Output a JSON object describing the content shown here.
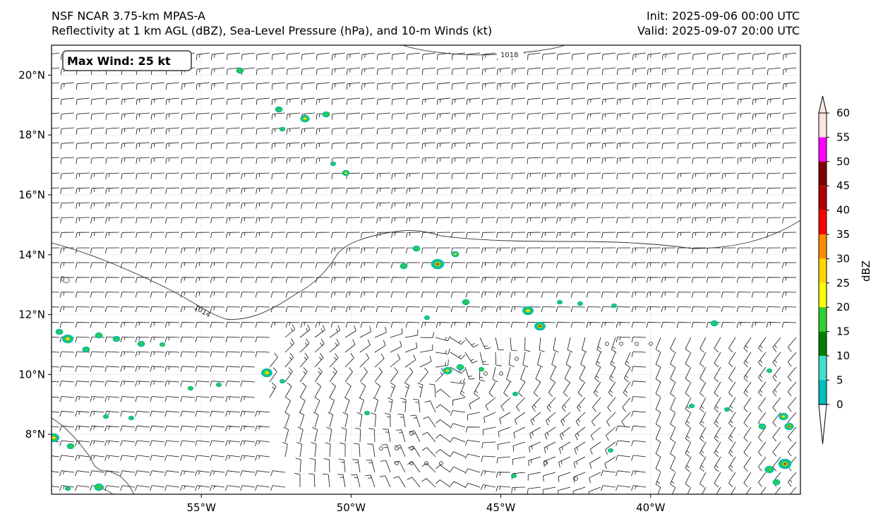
{
  "header": {
    "model": "NSF NCAR 3.75-km MPAS-A",
    "fields": "Reflectivity at 1 km AGL (dBZ), Sea-Level Pressure (hPa), and 10-m Winds (kt)",
    "init": "Init: 2025-09-06 00:00 UTC",
    "valid": "Valid: 2025-09-07 20:00 UTC"
  },
  "max_wind": "Max Wind: 25 kt",
  "axes": {
    "lat_labels": [
      {
        "value": 20,
        "label": "20°N"
      },
      {
        "value": 18,
        "label": "18°N"
      },
      {
        "value": 16,
        "label": "16°N"
      },
      {
        "value": 14,
        "label": "14°N"
      },
      {
        "value": 12,
        "label": "12°N"
      },
      {
        "value": 10,
        "label": "10°N"
      },
      {
        "value": 8,
        "label": "8°N"
      }
    ],
    "lon_labels": [
      {
        "value": -55,
        "label": "55°W"
      },
      {
        "value": -50,
        "label": "50°W"
      },
      {
        "value": -45,
        "label": "45°W"
      },
      {
        "value": -40,
        "label": "40°W"
      }
    ],
    "lon_range": [
      -60,
      -35
    ],
    "lat_range": [
      6,
      21
    ]
  },
  "isobars": [
    {
      "value": "1018",
      "label": "1018"
    },
    {
      "value": "1014",
      "label": "1014"
    }
  ],
  "colorbar": {
    "label": "dBZ",
    "ticks": [
      "0",
      "5",
      "10",
      "15",
      "20",
      "25",
      "30",
      "35",
      "40",
      "45",
      "50",
      "55",
      "60"
    ],
    "colors": [
      "#007f7f",
      "#00bfbf",
      "#40e0d0",
      "#008000",
      "#32cd32",
      "#ffff00",
      "#ffd700",
      "#ff8c00",
      "#ff0000",
      "#b00000",
      "#800000",
      "#ff00ff",
      "#ffe4e1"
    ]
  }
}
